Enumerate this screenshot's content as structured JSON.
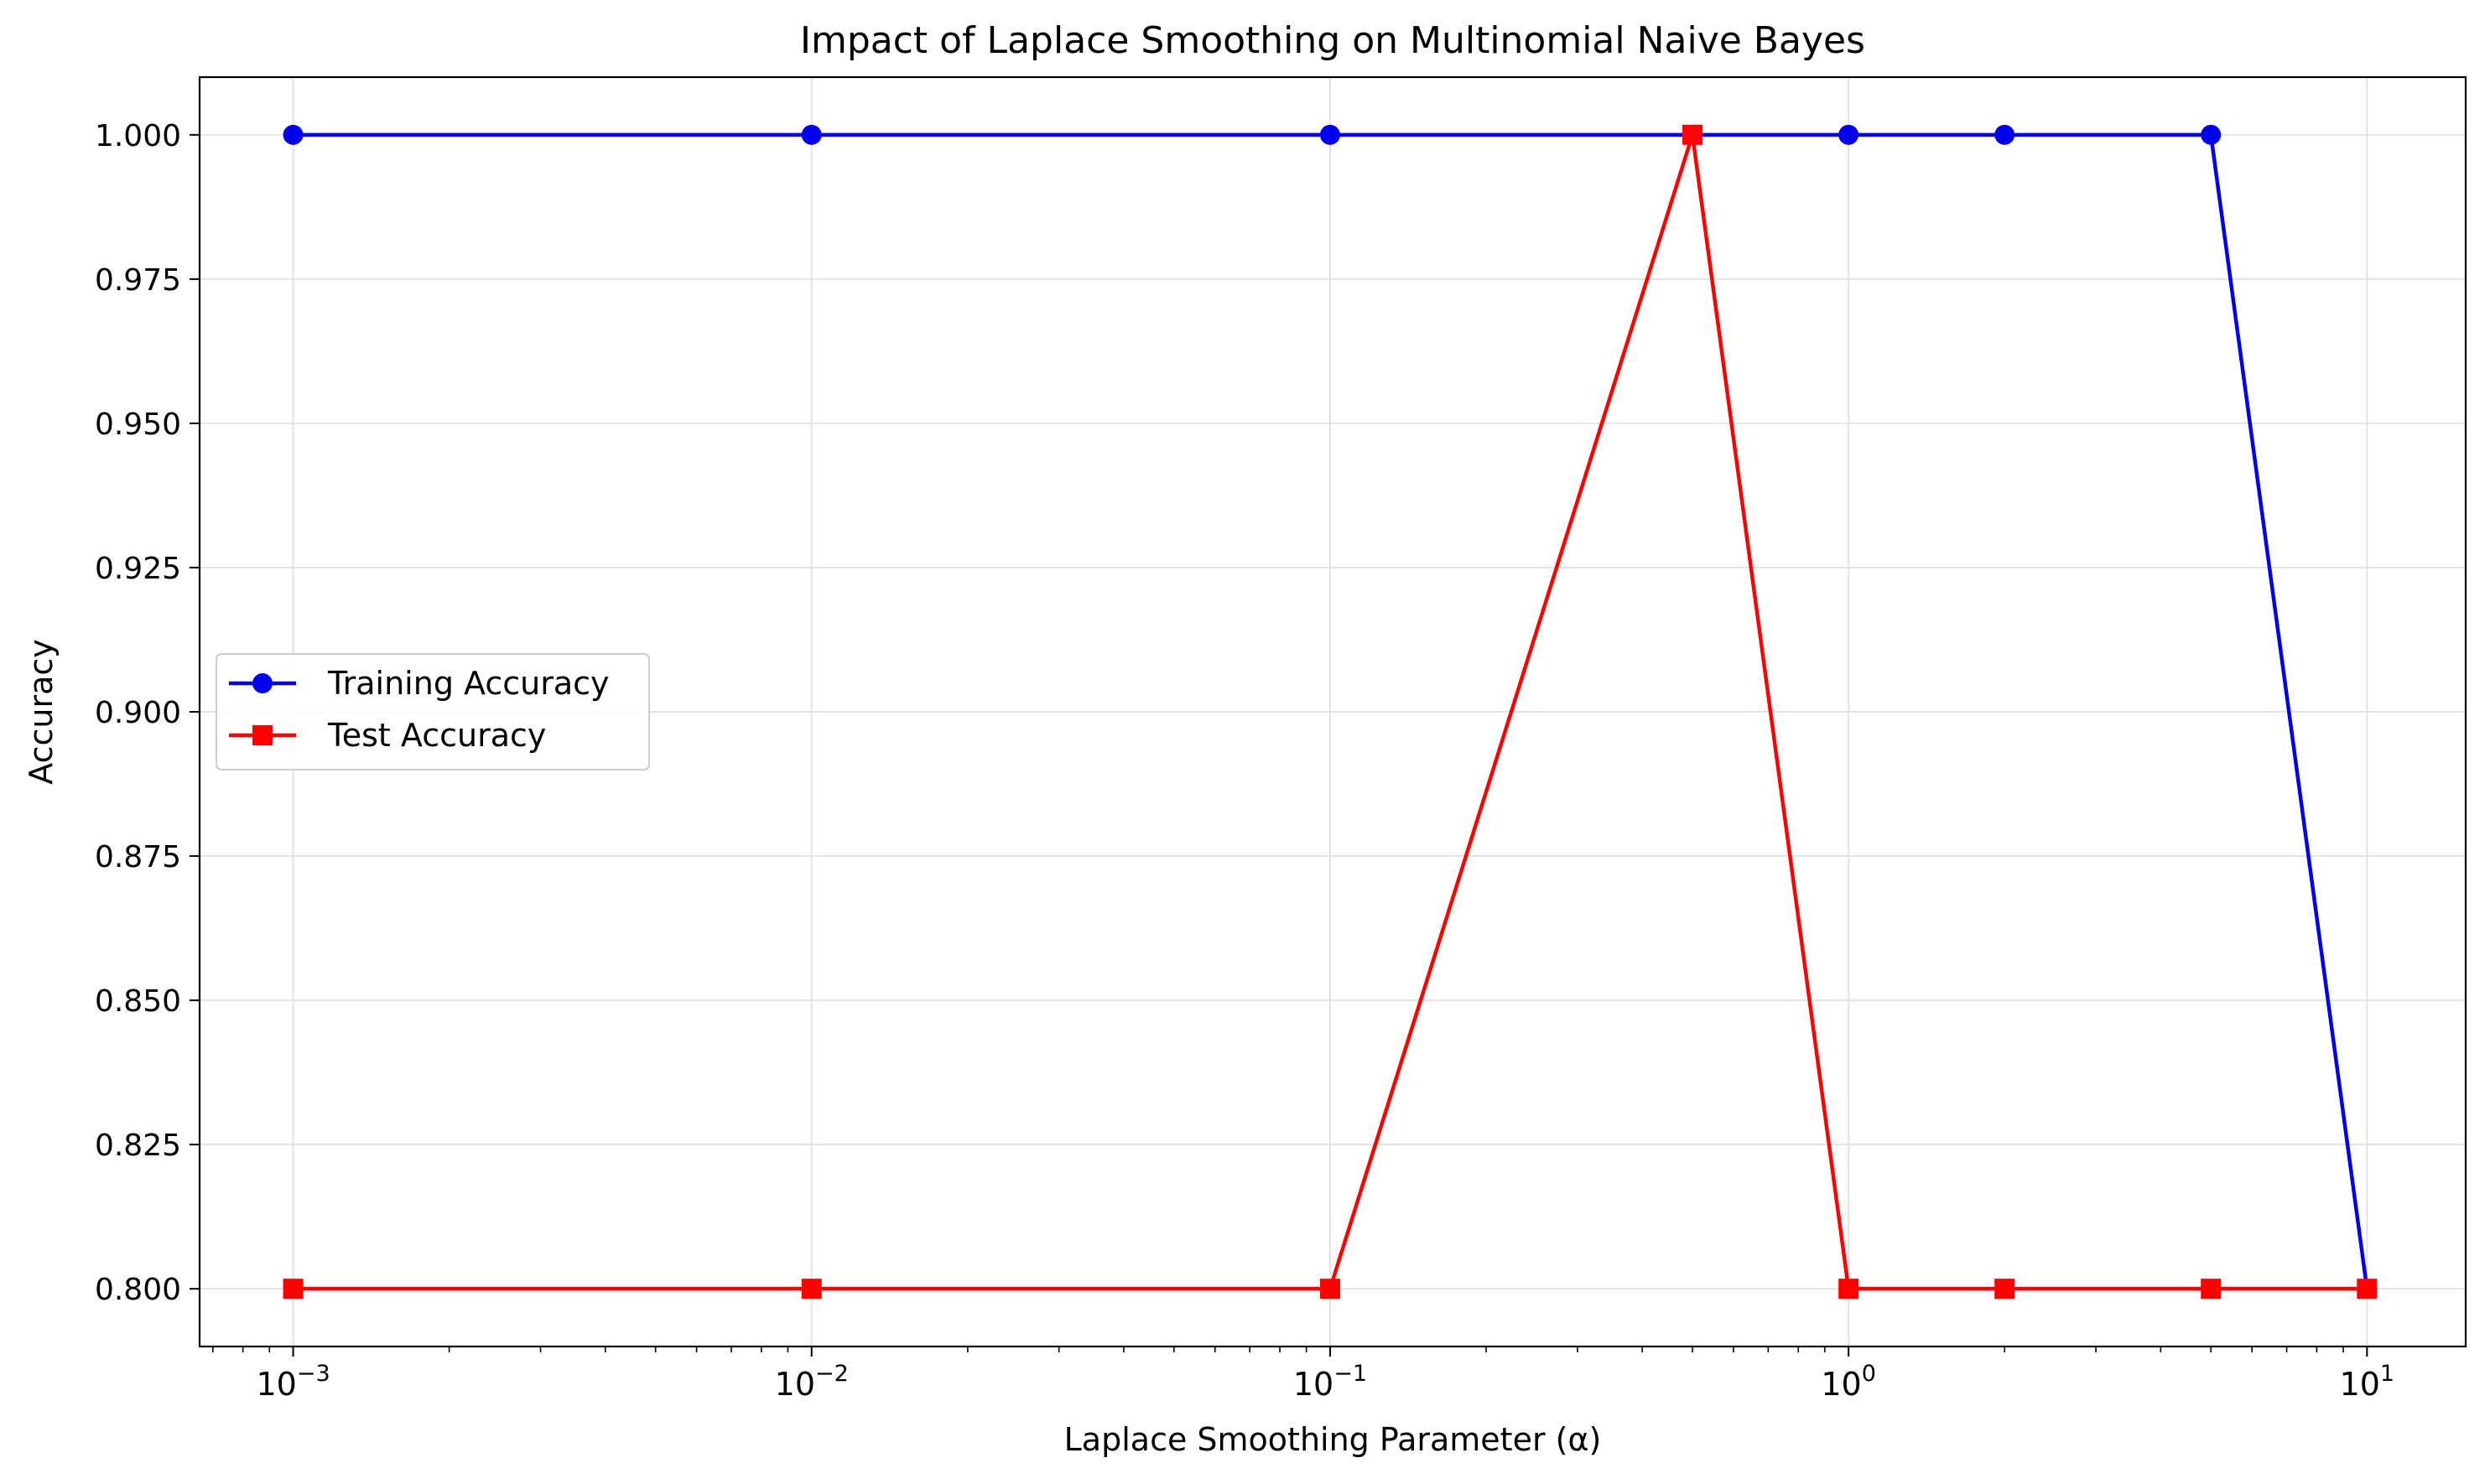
{
  "chart_data": {
    "type": "line",
    "title": "Impact of Laplace Smoothing on Multinomial Naive Bayes",
    "xlabel": "Laplace Smoothing Parameter (α)",
    "ylabel": "Accuracy",
    "xscale": "log",
    "xlim": [
      0.00066,
      15.5
    ],
    "ylim": [
      0.79,
      1.01
    ],
    "x_ticks": [
      {
        "value": 0.001,
        "base": "10",
        "exp": "−3"
      },
      {
        "value": 0.01,
        "base": "10",
        "exp": "−2"
      },
      {
        "value": 0.1,
        "base": "10",
        "exp": "−1"
      },
      {
        "value": 1,
        "base": "10",
        "exp": "0"
      },
      {
        "value": 10,
        "base": "10",
        "exp": "1"
      }
    ],
    "y_ticks": [
      {
        "value": 0.8,
        "label": "0.800"
      },
      {
        "value": 0.825,
        "label": "0.825"
      },
      {
        "value": 0.85,
        "label": "0.850"
      },
      {
        "value": 0.875,
        "label": "0.875"
      },
      {
        "value": 0.9,
        "label": "0.900"
      },
      {
        "value": 0.925,
        "label": "0.925"
      },
      {
        "value": 0.95,
        "label": "0.950"
      },
      {
        "value": 0.975,
        "label": "0.975"
      },
      {
        "value": 1.0,
        "label": "1.000"
      }
    ],
    "grid": true,
    "legend_position": "center-left",
    "x": [
      0.001,
      0.01,
      0.1,
      0.5,
      1,
      2,
      5,
      10
    ],
    "series": [
      {
        "name": "Training Accuracy",
        "color": "#0000ee",
        "marker": "circle",
        "values": [
          1.0,
          1.0,
          1.0,
          1.0,
          1.0,
          1.0,
          1.0,
          0.8
        ]
      },
      {
        "name": "Test Accuracy",
        "color": "#ff0000",
        "marker": "square",
        "values": [
          0.8,
          0.8,
          0.8,
          1.0,
          0.8,
          0.8,
          0.8,
          0.8
        ]
      }
    ]
  }
}
